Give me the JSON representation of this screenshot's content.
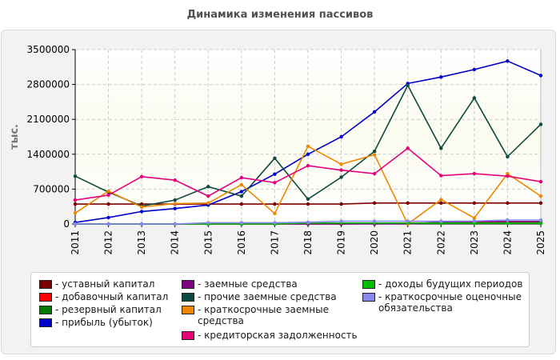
{
  "title": "Динамика изменения пассивов",
  "chart_data": {
    "type": "line",
    "title": "Динамика изменения пассивов",
    "xlabel": "",
    "ylabel": "тыс.",
    "ylim": [
      0,
      3500000
    ],
    "yticks": [
      "0",
      "700000",
      "1400000",
      "2100000",
      "2800000",
      "3500000"
    ],
    "ytick_values": [
      0,
      700000,
      1400000,
      2100000,
      2800000,
      3500000
    ],
    "categories": [
      "2011",
      "2012",
      "2013",
      "2014",
      "2015",
      "2016",
      "2017",
      "2018",
      "2019",
      "2020",
      "2021",
      "2022",
      "2023",
      "2024",
      "2025"
    ],
    "grid": true,
    "legend_position": "bottom",
    "series": [
      {
        "name": "уставный капитал",
        "color": "#7b0000",
        "values": [
          400000,
          400000,
          400000,
          400000,
          400000,
          400000,
          400000,
          400000,
          400000,
          420000,
          420000,
          420000,
          420000,
          420000,
          420000
        ]
      },
      {
        "name": "добавочный капитал",
        "color": "#ff0000",
        "values": [
          0,
          0,
          0,
          0,
          0,
          0,
          0,
          0,
          0,
          10000,
          20000,
          25000,
          30000,
          30000,
          30000
        ]
      },
      {
        "name": "резервный капитал",
        "color": "#007a00",
        "values": [
          0,
          0,
          0,
          0,
          0,
          0,
          0,
          10000,
          15000,
          15000,
          15000,
          15000,
          15000,
          15000,
          15000
        ]
      },
      {
        "name": "прибыль (убыток)",
        "color": "#0000cc",
        "values": [
          30000,
          130000,
          250000,
          310000,
          380000,
          650000,
          1000000,
          1400000,
          1750000,
          2250000,
          2820000,
          2950000,
          3100000,
          3270000,
          2980000
        ]
      },
      {
        "name": "заемные средства",
        "color": "#800080",
        "values": [
          0,
          0,
          0,
          0,
          0,
          0,
          0,
          0,
          0,
          0,
          0,
          40000,
          50000,
          50000,
          50000
        ]
      },
      {
        "name": "прочие заемные средства",
        "color": "#0b4a40",
        "values": [
          960000,
          640000,
          360000,
          480000,
          750000,
          560000,
          1320000,
          500000,
          940000,
          1460000,
          2780000,
          1520000,
          2530000,
          1350000,
          2000000
        ]
      },
      {
        "name": "краткосрочные заемные средства",
        "color": "#ee8800",
        "values": [
          220000,
          660000,
          340000,
          410000,
          420000,
          790000,
          210000,
          1560000,
          1200000,
          1390000,
          0,
          490000,
          120000,
          1010000,
          560000
        ]
      },
      {
        "name": "кредиторская задолженность",
        "color": "#e6007a",
        "values": [
          480000,
          580000,
          950000,
          880000,
          560000,
          930000,
          830000,
          1170000,
          1080000,
          1010000,
          1520000,
          970000,
          1010000,
          960000,
          850000
        ]
      },
      {
        "name": "доходы будущих периодов",
        "color": "#00bb00",
        "values": [
          0,
          0,
          0,
          0,
          0,
          0,
          0,
          20000,
          20000,
          20000,
          20000,
          20000,
          20000,
          20000,
          20000
        ]
      },
      {
        "name": "краткосрочные оценочные обязательства",
        "color": "#8888ee",
        "values": [
          0,
          0,
          0,
          0,
          25000,
          25000,
          25000,
          35000,
          55000,
          55000,
          55000,
          55000,
          60000,
          80000,
          80000
        ]
      }
    ]
  },
  "legend": {
    "col1": [
      "уставный капитал",
      "добавочный капитал",
      "резервный капитал",
      "прибыль (убыток)"
    ],
    "col2": [
      "заемные средства",
      "прочие заемные средства",
      "краткосрочные заемные",
      "средства",
      "кредиторская задолженность"
    ],
    "col3": [
      "доходы будущих периодов",
      "краткосрочные оценочные",
      "обязательства"
    ]
  }
}
